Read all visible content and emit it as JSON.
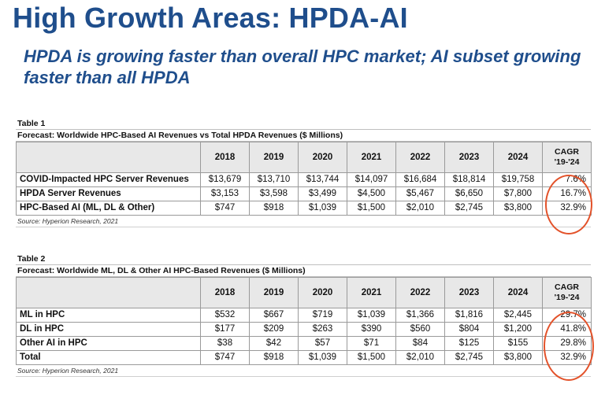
{
  "slide": {
    "title": "High Growth Areas: HPDA-AI",
    "subtitle": "HPDA is growing faster than overall HPC market; AI subset growing faster than all HPDA"
  },
  "columns": [
    "2018",
    "2019",
    "2020",
    "2021",
    "2022",
    "2023",
    "2024"
  ],
  "cagr_header": [
    "CAGR",
    "'19-'24"
  ],
  "highlight_color": "#e3522a",
  "table1": {
    "label": "Table 1",
    "caption": "Forecast: Worldwide HPC-Based AI Revenues vs Total HPDA Revenues ($ Millions)",
    "rows": [
      {
        "label": "COVID-Impacted HPC Server Revenues",
        "values": [
          "$13,679",
          "$13,710",
          "$13,744",
          "$14,097",
          "$16,684",
          "$18,814",
          "$19,758"
        ],
        "cagr": "7.6%"
      },
      {
        "label": "HPDA Server Revenues",
        "values": [
          "$3,153",
          "$3,598",
          "$3,499",
          "$4,500",
          "$5,467",
          "$6,650",
          "$7,800"
        ],
        "cagr": "16.7%"
      },
      {
        "label": "HPC-Based AI (ML, DL & Other)",
        "values": [
          "$747",
          "$918",
          "$1,039",
          "$1,500",
          "$2,010",
          "$2,745",
          "$3,800"
        ],
        "cagr": "32.9%"
      }
    ],
    "source": "Source: Hyperion Research, 2021"
  },
  "table2": {
    "label": "Table 2",
    "caption": "Forecast: Worldwide ML, DL & Other AI HPC-Based Revenues ($ Millions)",
    "rows": [
      {
        "label": "ML in HPC",
        "values": [
          "$532",
          "$667",
          "$719",
          "$1,039",
          "$1,366",
          "$1,816",
          "$2,445"
        ],
        "cagr": "29.7%"
      },
      {
        "label": "DL in HPC",
        "values": [
          "$177",
          "$209",
          "$263",
          "$390",
          "$560",
          "$804",
          "$1,200"
        ],
        "cagr": "41.8%"
      },
      {
        "label": "Other AI in HPC",
        "values": [
          "$38",
          "$42",
          "$57",
          "$71",
          "$84",
          "$125",
          "$155"
        ],
        "cagr": "29.8%"
      },
      {
        "label": "Total",
        "values": [
          "$747",
          "$918",
          "$1,039",
          "$1,500",
          "$2,010",
          "$2,745",
          "$3,800"
        ],
        "cagr": "32.9%"
      }
    ],
    "source": "Source: Hyperion Research, 2021"
  }
}
